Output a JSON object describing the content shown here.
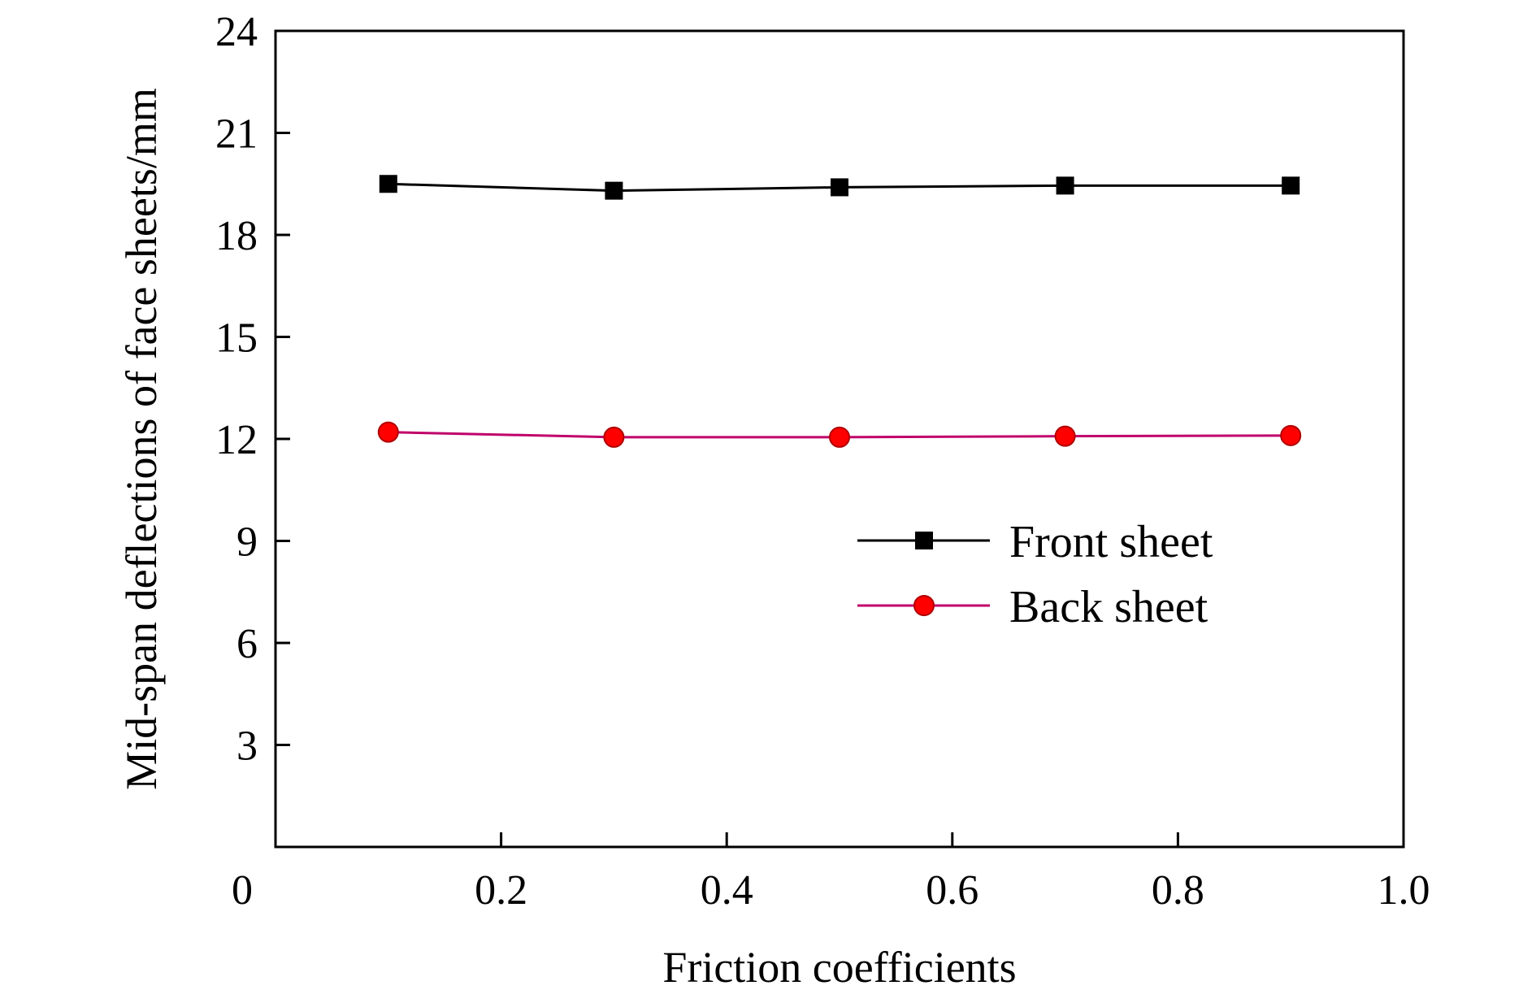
{
  "chart_data": {
    "type": "line",
    "xlabel": "Friction coefficients",
    "ylabel": "Mid-span deflections of face sheets/mm",
    "xlim": [
      0,
      1.0
    ],
    "ylim": [
      0,
      24
    ],
    "xticks": [
      0.2,
      0.4,
      0.6,
      0.8,
      1.0
    ],
    "xtick_labels": [
      "0.2",
      "0.4",
      "0.6",
      "0.8",
      "1.0"
    ],
    "yticks": [
      3,
      6,
      9,
      12,
      15,
      18,
      21,
      24
    ],
    "ytick_labels": [
      "3",
      "6",
      "9",
      "12",
      "15",
      "18",
      "21",
      "24"
    ],
    "origin_label": "0",
    "grid": false,
    "legend_position": "center-right",
    "series": [
      {
        "name": "Front sheet",
        "marker": "square",
        "color": "#000000",
        "line_color": "#000000",
        "x": [
          0.1,
          0.3,
          0.5,
          0.7,
          0.9
        ],
        "y": [
          19.5,
          19.3,
          19.4,
          19.45,
          19.45
        ]
      },
      {
        "name": "Back sheet",
        "marker": "circle",
        "color": "#ff0000",
        "line_color": "#c0006a",
        "x": [
          0.1,
          0.3,
          0.5,
          0.7,
          0.9
        ],
        "y": [
          12.2,
          12.05,
          12.05,
          12.08,
          12.1
        ]
      }
    ]
  }
}
